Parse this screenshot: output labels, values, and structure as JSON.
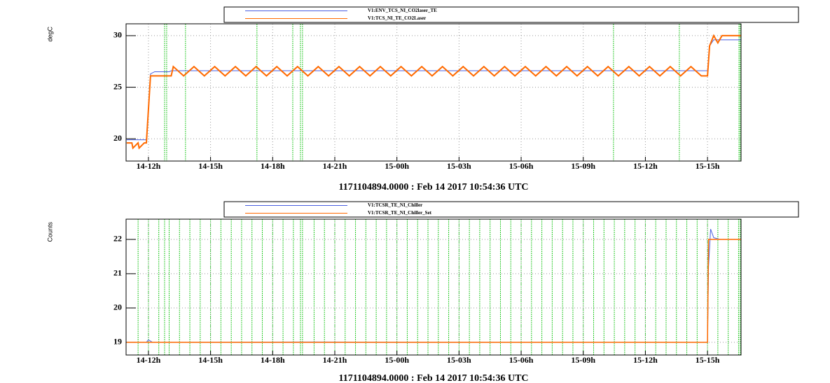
{
  "chart_data": [
    {
      "type": "line",
      "title": "1171104894.0000 : Feb 14 2017 10:54:36 UTC",
      "y_label": "degC",
      "legend": "top",
      "grid": true,
      "xlim": [
        10.92,
        40.62
      ],
      "ylim": [
        17.84,
        31.15
      ],
      "xticks": [
        {
          "value": 12,
          "label": "14-12h"
        },
        {
          "value": 15,
          "label": "14-15h"
        },
        {
          "value": 18,
          "label": "14-18h"
        },
        {
          "value": 21,
          "label": "14-21h"
        },
        {
          "value": 24,
          "label": "15-00h"
        },
        {
          "value": 27,
          "label": "15-03h"
        },
        {
          "value": 30,
          "label": "15-06h"
        },
        {
          "value": 33,
          "label": "15-09h"
        },
        {
          "value": 36,
          "label": "15-12h"
        },
        {
          "value": 39,
          "label": "15-15h"
        }
      ],
      "yticks": [
        20,
        25,
        30
      ],
      "vlines": {
        "color": "#33cc33",
        "x": [
          12.78,
          12.88,
          13.79,
          17.24,
          18.97,
          19.34,
          19.44,
          34.46,
          37.64,
          40.52,
          40.58
        ]
      },
      "series": [
        {
          "name": "V1:ENV_TCS_NI_CO2laser_TE",
          "color": "#4a5fe0",
          "width": 1,
          "x": [
            10.95,
            11.9,
            12.0,
            12.1,
            12.3,
            13.0,
            13.1,
            39.0,
            39.1,
            39.3,
            40.6
          ],
          "values": [
            19.9,
            19.9,
            23,
            26.3,
            26.5,
            26.5,
            26.6,
            26.6,
            29.0,
            29.6,
            29.6
          ]
        },
        {
          "name": "V1:TCS_NI_TE_CO2Laser",
          "color": "#ff6a00",
          "width": 2,
          "x": [
            10.95,
            11.2,
            11.25,
            11.5,
            11.55,
            11.8,
            11.9,
            12.1,
            12.3,
            13.1,
            13.2,
            13.7,
            14.2,
            14.7,
            15.2,
            15.7,
            16.2,
            16.7,
            17.2,
            17.7,
            18.2,
            18.7,
            19.2,
            19.7,
            20.2,
            20.7,
            21.2,
            21.7,
            22.2,
            22.7,
            23.2,
            23.7,
            24.2,
            24.7,
            25.2,
            25.7,
            26.2,
            26.7,
            27.2,
            27.7,
            28.2,
            28.7,
            29.2,
            29.7,
            30.2,
            30.7,
            31.2,
            31.7,
            32.2,
            32.7,
            33.2,
            33.7,
            34.2,
            34.7,
            35.2,
            35.7,
            36.2,
            36.7,
            37.2,
            37.7,
            38.2,
            38.7,
            39.0,
            39.1,
            39.3,
            39.5,
            39.7,
            40.6
          ],
          "values": [
            19.6,
            19.6,
            19.1,
            19.6,
            19.1,
            19.6,
            19.6,
            26.1,
            26.1,
            26.1,
            27,
            26.1,
            27,
            26.1,
            27,
            26.1,
            27,
            26.1,
            27,
            26.1,
            27,
            26.1,
            27,
            26.1,
            27,
            26.1,
            27,
            26.1,
            27,
            26.1,
            27,
            26.1,
            27,
            26.1,
            27,
            26.1,
            27,
            26.1,
            27,
            26.1,
            27,
            26.1,
            27,
            26.1,
            27,
            26.1,
            27,
            26.1,
            27,
            26.1,
            27,
            26.1,
            27,
            26.1,
            27,
            26.1,
            27,
            26.1,
            27,
            26.1,
            27,
            26.1,
            26.1,
            29.0,
            30.0,
            29.3,
            30.0,
            30.0
          ]
        }
      ]
    },
    {
      "type": "line",
      "title": "1171104894.0000 : Feb 14 2017 10:54:36 UTC",
      "y_label": "Counts",
      "legend": "top",
      "grid": true,
      "xlim": [
        10.92,
        40.62
      ],
      "ylim": [
        18.63,
        22.59
      ],
      "xticks": [
        {
          "value": 12,
          "label": "14-12h"
        },
        {
          "value": 15,
          "label": "14-15h"
        },
        {
          "value": 18,
          "label": "14-18h"
        },
        {
          "value": 21,
          "label": "14-21h"
        },
        {
          "value": 24,
          "label": "15-00h"
        },
        {
          "value": 27,
          "label": "15-03h"
        },
        {
          "value": 30,
          "label": "15-06h"
        },
        {
          "value": 33,
          "label": "15-09h"
        },
        {
          "value": 36,
          "label": "15-12h"
        },
        {
          "value": 39,
          "label": "15-15h"
        }
      ],
      "yticks": [
        19,
        20,
        21,
        22
      ],
      "vlines": {
        "color": "#33cc33",
        "x": [
          11.5,
          12.0,
          12.5,
          12.78,
          13.0,
          13.5,
          14.0,
          14.5,
          15.0,
          15.5,
          16.0,
          16.5,
          17.0,
          17.5,
          18.0,
          18.5,
          19.0,
          19.34,
          19.44,
          20.0,
          20.5,
          21.0,
          21.5,
          22.0,
          22.5,
          23.0,
          23.5,
          24.0,
          24.5,
          25.0,
          25.5,
          26.0,
          26.5,
          27.0,
          27.5,
          28.0,
          28.5,
          29.0,
          29.5,
          30.0,
          30.5,
          31.0,
          31.5,
          32.0,
          32.5,
          33.0,
          33.5,
          34.0,
          34.5,
          35.0,
          35.5,
          36.0,
          36.5,
          37.0,
          37.5,
          38.0,
          38.5,
          39.0,
          39.5,
          40.0,
          40.5,
          40.58
        ]
      },
      "series": [
        {
          "name": "V1:TCSR_TE_NI_Chiller",
          "color": "#4a5fe0",
          "width": 1,
          "x": [
            10.95,
            11.9,
            12.0,
            12.2,
            13,
            20,
            30,
            38.9,
            39.0,
            39.05,
            39.15,
            39.3,
            39.6,
            40.6
          ],
          "values": [
            19.0,
            19.0,
            19.07,
            19.0,
            19.0,
            19.01,
            19.0,
            19.0,
            19.0,
            21.2,
            22.3,
            22.05,
            22.0,
            22.0
          ]
        },
        {
          "name": "V1:TCSR_TE_NI_Chiller_Set",
          "color": "#ff6a00",
          "width": 1.5,
          "x": [
            10.95,
            39.0,
            39.05,
            39.2,
            40.6
          ],
          "values": [
            19.0,
            19.0,
            22.0,
            22.0,
            22.0
          ]
        }
      ]
    }
  ]
}
